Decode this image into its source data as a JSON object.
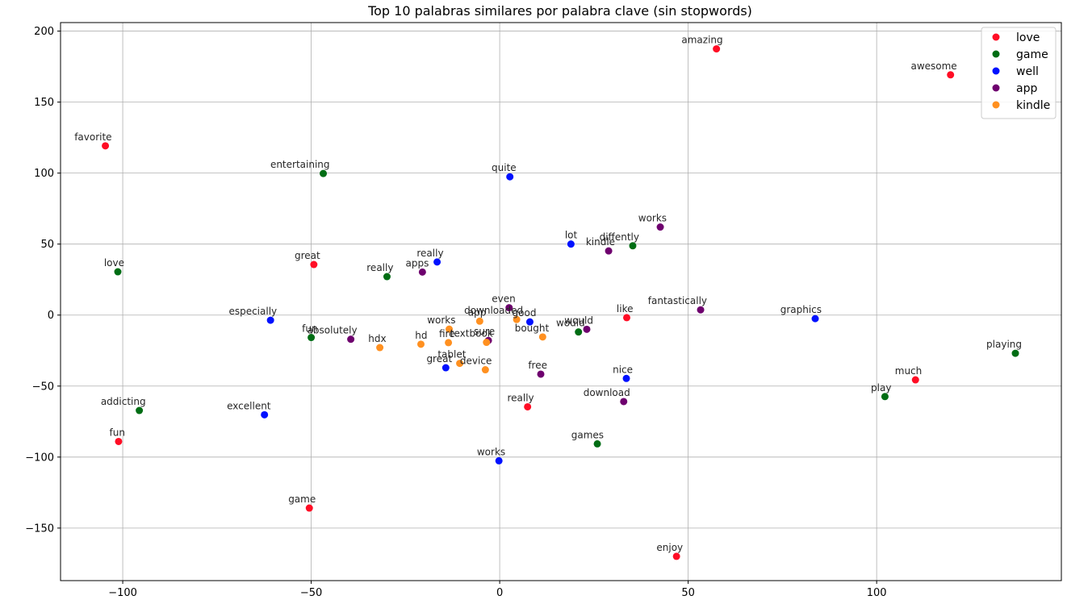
{
  "chart_data": {
    "type": "scatter",
    "title": "Top 10 palabras similares por palabra clave (sin stopwords)",
    "xlabel": "",
    "ylabel": "",
    "xlim": [
      -116.5,
      149
    ],
    "ylim": [
      -187,
      206
    ],
    "xticks": [
      -100,
      -50,
      0,
      50,
      100
    ],
    "yticks": [
      -150,
      -100,
      -50,
      0,
      50,
      100,
      150,
      200
    ],
    "xtick_labels": [
      "−100",
      "−50",
      "0",
      "50",
      "100"
    ],
    "ytick_labels": [
      "−150",
      "−100",
      "−50",
      "0",
      "50",
      "100",
      "150",
      "200"
    ],
    "grid": true,
    "legend_position": "top-right",
    "series": [
      {
        "name": "love",
        "color": "#ff0d25",
        "points": [
          {
            "label": "amazing",
            "x": 57.5,
            "y": 187.5
          },
          {
            "label": "awesome",
            "x": 119.6,
            "y": 169.2
          },
          {
            "label": "favorite",
            "x": -104.6,
            "y": 119.2
          },
          {
            "label": "great",
            "x": -49.3,
            "y": 35.6
          },
          {
            "label": "like",
            "x": 33.7,
            "y": -1.8
          },
          {
            "label": "much",
            "x": 110.3,
            "y": -45.6
          },
          {
            "label": "really",
            "x": 7.4,
            "y": -64.6
          },
          {
            "label": "fun",
            "x": -101.1,
            "y": -89.0
          },
          {
            "label": "game",
            "x": -50.5,
            "y": -135.9
          },
          {
            "label": "enjoy",
            "x": 46.9,
            "y": -169.9
          }
        ]
      },
      {
        "name": "game",
        "color": "#006d14",
        "points": [
          {
            "label": "entertaining",
            "x": -46.8,
            "y": 99.7
          },
          {
            "label": "diffently",
            "x": 35.3,
            "y": 48.8
          },
          {
            "label": "love",
            "x": -101.3,
            "y": 30.5
          },
          {
            "label": "really",
            "x": -29.9,
            "y": 27.1
          },
          {
            "label": "fun",
            "x": -50.0,
            "y": -15.8
          },
          {
            "label": "would",
            "x": 20.9,
            "y": -11.9
          },
          {
            "label": "playing",
            "x": 136.8,
            "y": -26.9
          },
          {
            "label": "play",
            "x": 102.2,
            "y": -57.4
          },
          {
            "label": "addicting",
            "x": -95.6,
            "y": -67.2
          },
          {
            "label": "games",
            "x": 25.9,
            "y": -90.7
          }
        ]
      },
      {
        "name": "well",
        "color": "#0011ff",
        "points": [
          {
            "label": "quite",
            "x": 2.7,
            "y": 97.4
          },
          {
            "label": "lot",
            "x": 18.9,
            "y": 50.0
          },
          {
            "label": "really",
            "x": -16.6,
            "y": 37.4
          },
          {
            "label": "good",
            "x": 8.0,
            "y": -4.8
          },
          {
            "label": "especially",
            "x": -60.8,
            "y": -3.6
          },
          {
            "label": "graphics",
            "x": 83.7,
            "y": -2.5
          },
          {
            "label": "great",
            "x": -14.3,
            "y": -37.1
          },
          {
            "label": "nice",
            "x": 33.6,
            "y": -44.6
          },
          {
            "label": "excellent",
            "x": -62.4,
            "y": -70.2
          },
          {
            "label": "works",
            "x": -0.2,
            "y": -102.6
          }
        ]
      },
      {
        "name": "app",
        "color": "#6e006e",
        "points": [
          {
            "label": "works",
            "x": 42.6,
            "y": 62.0
          },
          {
            "label": "kindle",
            "x": 28.9,
            "y": 45.2
          },
          {
            "label": "apps",
            "x": -20.5,
            "y": 30.3
          },
          {
            "label": "even",
            "x": 2.5,
            "y": 5.2
          },
          {
            "label": "fantastically",
            "x": 53.3,
            "y": 3.7
          },
          {
            "label": "would",
            "x": 23.1,
            "y": -10.0
          },
          {
            "label": "sure",
            "x": -3.0,
            "y": -17.9
          },
          {
            "label": "absolutely",
            "x": -39.5,
            "y": -17.0
          },
          {
            "label": "free",
            "x": 10.9,
            "y": -41.6
          },
          {
            "label": "download",
            "x": 32.9,
            "y": -60.9
          }
        ]
      },
      {
        "name": "kindle",
        "color": "#ff9020",
        "points": [
          {
            "label": "app",
            "x": -5.3,
            "y": -4.3
          },
          {
            "label": "downloaded",
            "x": 4.5,
            "y": -3.1
          },
          {
            "label": "works",
            "x": -13.4,
            "y": -9.9
          },
          {
            "label": "bought",
            "x": 11.4,
            "y": -15.4
          },
          {
            "label": "fire",
            "x": -13.6,
            "y": -19.4
          },
          {
            "label": "textbook",
            "x": -3.5,
            "y": -19.2
          },
          {
            "label": "hdx",
            "x": -31.8,
            "y": -22.9
          },
          {
            "label": "hd",
            "x": -20.9,
            "y": -20.5
          },
          {
            "label": "tablet",
            "x": -10.6,
            "y": -34.0
          },
          {
            "label": "device",
            "x": -3.8,
            "y": -38.5
          }
        ]
      }
    ]
  }
}
